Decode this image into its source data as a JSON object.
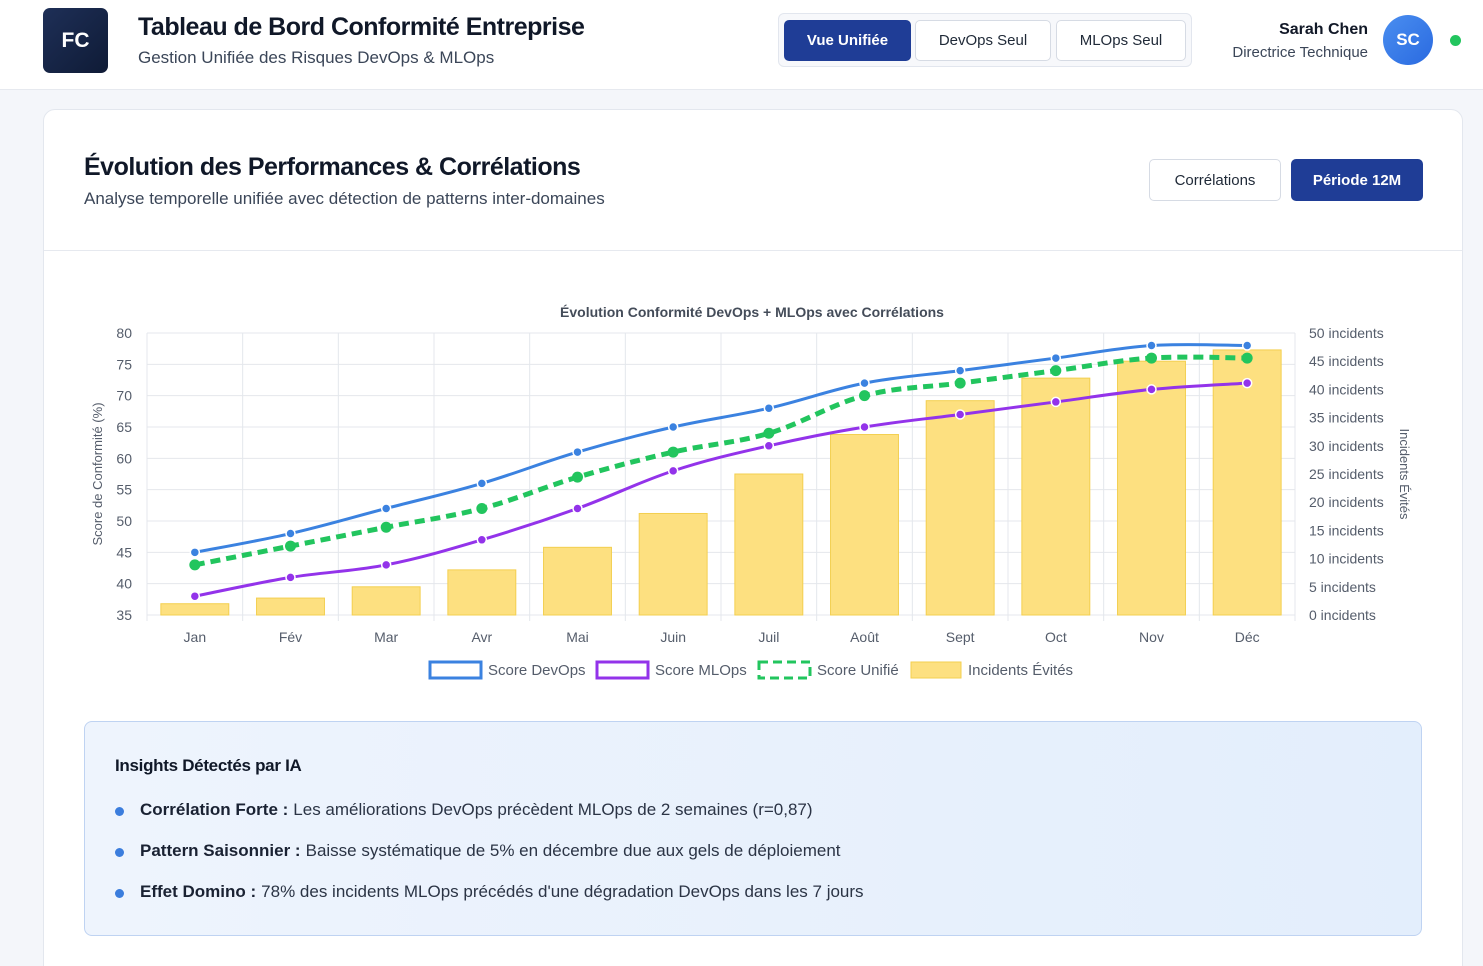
{
  "header": {
    "logo_text": "FC",
    "title": "Tableau de Bord Conformité Entreprise",
    "subtitle": "Gestion Unifiée des Risques DevOps & MLOps",
    "views": [
      {
        "label": "Vue Unifiée",
        "active": true
      },
      {
        "label": "DevOps Seul",
        "active": false
      },
      {
        "label": "MLOps Seul",
        "active": false
      }
    ],
    "user": {
      "name": "Sarah Chen",
      "role": "Directrice Technique",
      "initials": "SC",
      "status_color": "#22c55e"
    }
  },
  "panel": {
    "title": "Évolution des Performances & Corrélations",
    "subtitle": "Analyse temporelle unifiée avec détection de patterns inter-domaines",
    "buttons": {
      "correlations": "Corrélations",
      "period": "Période 12M"
    }
  },
  "chart_data": {
    "type": "line",
    "title": "Évolution Conformité DevOps + MLOps avec Corrélations",
    "categories": [
      "Jan",
      "Fév",
      "Mar",
      "Avr",
      "Mai",
      "Juin",
      "Juil",
      "Août",
      "Sept",
      "Oct",
      "Nov",
      "Déc"
    ],
    "ylabel": "Score de Conformité (%)",
    "y2label": "Incidents Évités",
    "ylim": [
      35,
      80
    ],
    "yticks": [
      "80",
      "75",
      "70",
      "65",
      "60",
      "55",
      "50",
      "45",
      "40",
      "35"
    ],
    "y2lim": [
      0,
      50
    ],
    "y2ticks": [
      "50 incidents",
      "45 incidents",
      "40 incidents",
      "35 incidents",
      "30 incidents",
      "25 incidents",
      "20 incidents",
      "15 incidents",
      "10 incidents",
      "5 incidents",
      "0 incidents"
    ],
    "grid": true,
    "legend_position": "bottom",
    "series": [
      {
        "name": "Score DevOps",
        "type": "line",
        "axis": "left",
        "color": "#3b82e0",
        "values": [
          45,
          48,
          52,
          56,
          61,
          65,
          68,
          72,
          74,
          76,
          78,
          78
        ]
      },
      {
        "name": "Score MLOps",
        "type": "line",
        "axis": "left",
        "color": "#9333ea",
        "values": [
          38,
          41,
          43,
          47,
          52,
          58,
          62,
          65,
          67,
          69,
          71,
          72
        ]
      },
      {
        "name": "Score Unifié",
        "type": "dashed-line",
        "axis": "left",
        "color": "#22c55e",
        "values": [
          43,
          46,
          49,
          52,
          57,
          61,
          64,
          70,
          72,
          74,
          76,
          76
        ]
      },
      {
        "name": "Incidents Évités",
        "type": "bar",
        "axis": "right",
        "color": "#fde080",
        "values": [
          2,
          3,
          5,
          8,
          12,
          18,
          25,
          32,
          38,
          42,
          45,
          47
        ]
      }
    ]
  },
  "insights": {
    "title": "Insights Détectés par IA",
    "items": [
      {
        "label": "Corrélation Forte :",
        "text": "Les améliorations DevOps précèdent MLOps de 2 semaines (r=0,87)"
      },
      {
        "label": "Pattern Saisonnier :",
        "text": "Baisse systématique de 5% en décembre due aux gels de déploiement"
      },
      {
        "label": "Effet Domino :",
        "text": "78% des incidents MLOps précédés d'une dégradation DevOps dans les 7 jours"
      }
    ]
  }
}
